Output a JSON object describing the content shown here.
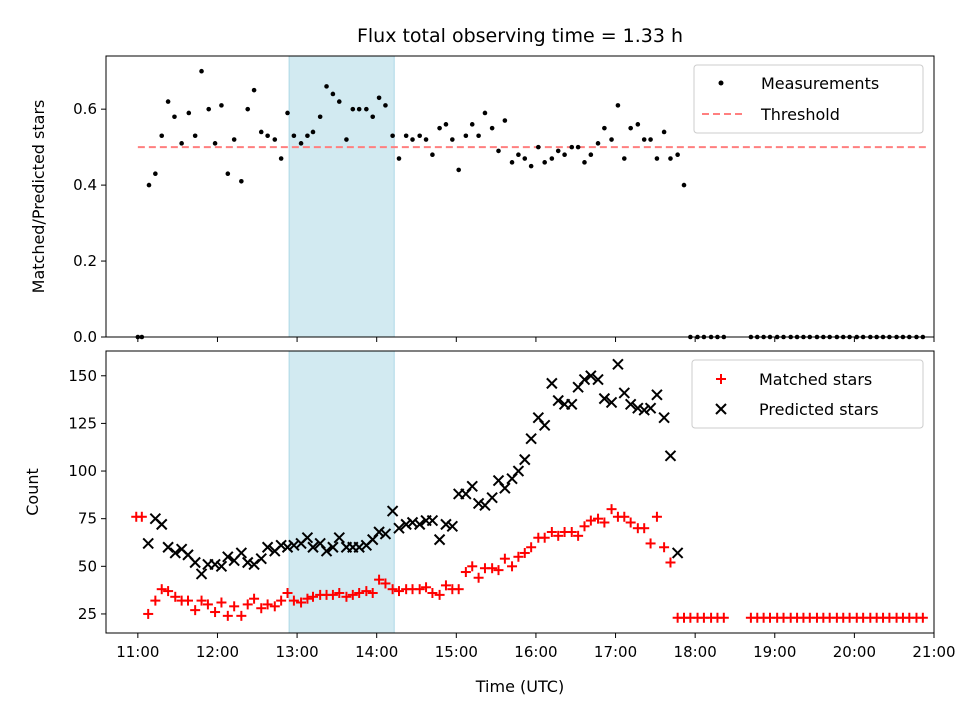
{
  "colors": {
    "measurement": "#000000",
    "threshold": "#ff7f7f",
    "matched": "#ff0000",
    "predicted": "#000000",
    "highlight": "#add8e6"
  },
  "chart_data": [
    {
      "type": "scatter",
      "title": "Flux total observing time = 1.33 h",
      "xlabel": "",
      "ylabel": "Matched/Predicted stars",
      "xlim": [
        10.6,
        21.0
      ],
      "ylim": [
        0.0,
        0.74
      ],
      "yticks": [
        0.0,
        0.2,
        0.4,
        0.6
      ],
      "ytick_labels": [
        "0.0",
        "0.2",
        "0.4",
        "0.6"
      ],
      "grid": false,
      "legend_position": "top-right",
      "highlight_span": [
        12.9,
        14.22
      ],
      "threshold": {
        "name": "Threshold",
        "value": 0.5,
        "x_range": [
          11.0,
          20.9
        ]
      },
      "series": [
        {
          "name": "Measurements",
          "x": [
            11.0,
            11.05,
            11.14,
            11.22,
            11.3,
            11.38,
            11.46,
            11.55,
            11.64,
            11.72,
            11.8,
            11.89,
            11.97,
            12.05,
            12.13,
            12.21,
            12.3,
            12.38,
            12.46,
            12.55,
            12.63,
            12.72,
            12.8,
            12.88,
            12.96,
            13.05,
            13.13,
            13.2,
            13.29,
            13.37,
            13.45,
            13.53,
            13.62,
            13.7,
            13.78,
            13.87,
            13.95,
            14.03,
            14.11,
            14.2,
            14.28,
            14.37,
            14.45,
            14.54,
            14.62,
            14.7,
            14.79,
            14.87,
            14.95,
            15.03,
            15.12,
            15.2,
            15.28,
            15.36,
            15.45,
            15.53,
            15.61,
            15.7,
            15.78,
            15.86,
            15.94,
            16.03,
            16.11,
            16.2,
            16.28,
            16.36,
            16.45,
            16.53,
            16.61,
            16.69,
            16.78,
            16.86,
            16.95,
            17.03,
            17.11,
            17.19,
            17.28,
            17.36,
            17.44,
            17.52,
            17.61,
            17.69,
            17.78,
            17.86,
            17.94,
            18.03,
            18.11,
            18.2,
            18.28,
            18.36,
            18.7,
            18.78,
            18.86,
            18.94,
            19.03,
            19.11,
            19.2,
            19.28,
            19.36,
            19.44,
            19.53,
            19.61,
            19.69,
            19.78,
            19.86,
            19.94,
            20.03,
            20.11,
            20.2,
            20.28,
            20.36,
            20.44,
            20.53,
            20.61,
            20.69,
            20.78,
            20.86
          ],
          "y": [
            0.0,
            0.0,
            0.4,
            0.43,
            0.53,
            0.62,
            0.58,
            0.51,
            0.59,
            0.53,
            0.7,
            0.6,
            0.51,
            0.61,
            0.43,
            0.52,
            0.41,
            0.6,
            0.65,
            0.54,
            0.53,
            0.52,
            0.47,
            0.59,
            0.53,
            0.51,
            0.53,
            0.54,
            0.58,
            0.66,
            0.64,
            0.62,
            0.52,
            0.6,
            0.6,
            0.6,
            0.58,
            0.63,
            0.61,
            0.53,
            0.47,
            0.53,
            0.52,
            0.53,
            0.52,
            0.48,
            0.55,
            0.56,
            0.52,
            0.44,
            0.53,
            0.56,
            0.53,
            0.59,
            0.55,
            0.49,
            0.57,
            0.46,
            0.48,
            0.47,
            0.45,
            0.5,
            0.46,
            0.47,
            0.49,
            0.48,
            0.5,
            0.5,
            0.46,
            0.48,
            0.51,
            0.55,
            0.52,
            0.61,
            0.47,
            0.55,
            0.56,
            0.52,
            0.52,
            0.47,
            0.54,
            0.47,
            0.48,
            0.4,
            0.0,
            0.0,
            0.0,
            0.0,
            0.0,
            0.0,
            0.0,
            0.0,
            0.0,
            0.0,
            0.0,
            0.0,
            0.0,
            0.0,
            0.0,
            0.0,
            0.0,
            0.0,
            0.0,
            0.0,
            0.0,
            0.0,
            0.0,
            0.0,
            0.0,
            0.0,
            0.0,
            0.0,
            0.0,
            0.0,
            0.0,
            0.0,
            0.0
          ]
        }
      ]
    },
    {
      "type": "scatter",
      "title": "",
      "xlabel": "Time (UTC)",
      "ylabel": "Count",
      "xlim": [
        10.6,
        21.0
      ],
      "ylim": [
        15,
        163
      ],
      "xticks": [
        11,
        12,
        13,
        14,
        15,
        16,
        17,
        18,
        19,
        20,
        21
      ],
      "xtick_labels": [
        "11:00",
        "12:00",
        "13:00",
        "14:00",
        "15:00",
        "16:00",
        "17:00",
        "18:00",
        "19:00",
        "20:00",
        "21:00"
      ],
      "yticks": [
        25,
        50,
        75,
        100,
        125,
        150
      ],
      "ytick_labels": [
        "25",
        "50",
        "75",
        "100",
        "125",
        "150"
      ],
      "grid": false,
      "legend_position": "top-right",
      "highlight_span": [
        12.9,
        14.22
      ],
      "series": [
        {
          "name": "Matched stars",
          "x": [
            10.98,
            11.05,
            11.13,
            11.22,
            11.3,
            11.38,
            11.47,
            11.55,
            11.63,
            11.72,
            11.8,
            11.88,
            11.97,
            12.05,
            12.13,
            12.21,
            12.3,
            12.38,
            12.46,
            12.55,
            12.63,
            12.72,
            12.8,
            12.88,
            12.96,
            13.05,
            13.13,
            13.2,
            13.29,
            13.37,
            13.45,
            13.53,
            13.62,
            13.7,
            13.78,
            13.87,
            13.95,
            14.03,
            14.11,
            14.2,
            14.28,
            14.37,
            14.45,
            14.54,
            14.62,
            14.7,
            14.79,
            14.87,
            14.95,
            15.03,
            15.12,
            15.2,
            15.28,
            15.36,
            15.45,
            15.53,
            15.61,
            15.7,
            15.78,
            15.86,
            15.94,
            16.03,
            16.11,
            16.2,
            16.28,
            16.36,
            16.45,
            16.53,
            16.61,
            16.69,
            16.78,
            16.86,
            16.95,
            17.03,
            17.11,
            17.19,
            17.28,
            17.36,
            17.44,
            17.52,
            17.61,
            17.69,
            17.78,
            17.86,
            17.94,
            18.03,
            18.11,
            18.2,
            18.28,
            18.36,
            18.7,
            18.78,
            18.86,
            18.94,
            19.03,
            19.11,
            19.2,
            19.28,
            19.36,
            19.44,
            19.53,
            19.61,
            19.69,
            19.78,
            19.86,
            19.94,
            20.03,
            20.11,
            20.2,
            20.28,
            20.36,
            20.44,
            20.53,
            20.61,
            20.69,
            20.78,
            20.86
          ],
          "y": [
            76,
            76,
            25,
            32,
            38,
            37,
            34,
            32,
            32,
            27,
            32,
            30,
            26,
            31,
            24,
            29,
            24,
            30,
            33,
            28,
            30,
            29,
            32,
            36,
            32,
            31,
            33,
            34,
            35,
            35,
            35,
            36,
            34,
            35,
            36,
            37,
            36,
            43,
            41,
            38,
            37,
            38,
            38,
            38,
            39,
            36,
            35,
            40,
            38,
            38,
            47,
            50,
            44,
            49,
            49,
            48,
            54,
            50,
            55,
            57,
            60,
            65,
            65,
            68,
            66,
            68,
            68,
            66,
            71,
            74,
            75,
            73,
            80,
            76,
            76,
            73,
            70,
            70,
            62,
            76,
            60,
            52,
            23,
            23,
            23,
            23,
            23,
            23,
            23,
            23,
            23,
            23,
            23,
            23,
            23,
            23,
            23,
            23,
            23,
            23,
            23,
            23,
            23,
            23,
            23,
            23,
            23,
            23,
            23,
            23,
            23,
            23,
            23,
            23,
            23,
            23,
            23
          ]
        },
        {
          "name": "Predicted stars",
          "x": [
            11.13,
            11.22,
            11.3,
            11.38,
            11.47,
            11.55,
            11.63,
            11.72,
            11.8,
            11.88,
            11.97,
            12.05,
            12.13,
            12.21,
            12.3,
            12.38,
            12.46,
            12.55,
            12.63,
            12.72,
            12.8,
            12.88,
            12.96,
            13.05,
            13.13,
            13.2,
            13.29,
            13.37,
            13.45,
            13.53,
            13.62,
            13.7,
            13.78,
            13.87,
            13.95,
            14.03,
            14.11,
            14.2,
            14.28,
            14.37,
            14.45,
            14.54,
            14.62,
            14.7,
            14.79,
            14.87,
            14.95,
            15.03,
            15.12,
            15.2,
            15.28,
            15.36,
            15.45,
            15.53,
            15.61,
            15.7,
            15.78,
            15.86,
            15.94,
            16.03,
            16.11,
            16.2,
            16.28,
            16.36,
            16.45,
            16.53,
            16.61,
            16.69,
            16.78,
            16.86,
            16.95,
            17.03,
            17.11,
            17.19,
            17.28,
            17.36,
            17.44,
            17.52,
            17.61,
            17.69,
            17.78
          ],
          "y": [
            62,
            75,
            72,
            60,
            57,
            59,
            56,
            52,
            46,
            51,
            51,
            50,
            55,
            53,
            57,
            52,
            51,
            54,
            60,
            58,
            61,
            60,
            61,
            62,
            65,
            60,
            62,
            58,
            60,
            65,
            60,
            60,
            60,
            61,
            64,
            68,
            67,
            79,
            70,
            72,
            73,
            72,
            74,
            74,
            64,
            72,
            71,
            88,
            88,
            92,
            83,
            82,
            86,
            95,
            91,
            96,
            100,
            106,
            117,
            128,
            124,
            146,
            137,
            135,
            135,
            144,
            148,
            150,
            148,
            138,
            136,
            156,
            141,
            135,
            133,
            132,
            133,
            140,
            128,
            108,
            57
          ]
        }
      ]
    }
  ]
}
